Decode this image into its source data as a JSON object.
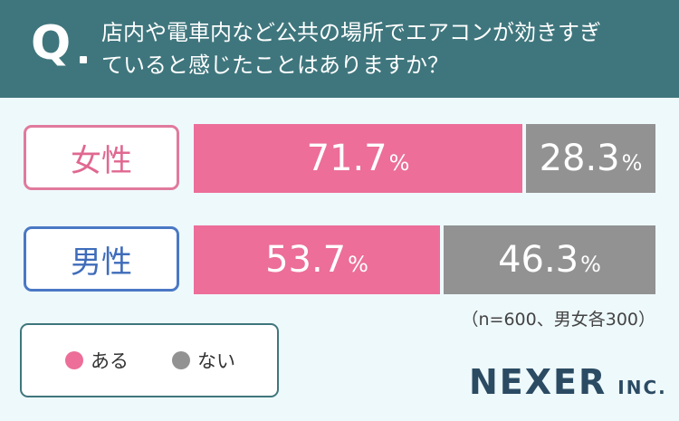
{
  "question": {
    "mark": "Q",
    "line1": "店内や電車内など公共の場所でエアコンが効きすぎ",
    "line2": "ていると感じたことはありますか？"
  },
  "chart_data": {
    "type": "bar",
    "stacked": true,
    "orientation": "horizontal",
    "categories": [
      "女性",
      "男性"
    ],
    "series": [
      {
        "name": "ある",
        "values": [
          71.7,
          53.7
        ]
      },
      {
        "name": "ない",
        "values": [
          28.3,
          46.3
        ]
      }
    ],
    "value_labels": {
      "female_yes": "71.7",
      "female_no": "28.3",
      "male_yes": "53.7",
      "male_no": "46.3"
    },
    "unit": "%",
    "xlim": [
      0,
      100
    ],
    "legend": "bottom-left",
    "colors": {
      "yes": "#ec6e99",
      "no": "#929292"
    }
  },
  "note": "（n=600、男女各300）",
  "logo": {
    "main": "NEXER",
    "sub": "INC."
  }
}
